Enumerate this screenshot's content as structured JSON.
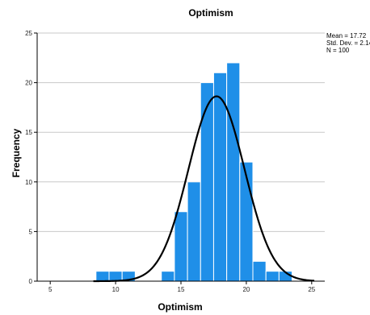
{
  "chart_data": {
    "type": "bar",
    "title": "Optimism",
    "xlabel": "Optimism",
    "ylabel": "Frequency",
    "xlim": [
      4,
      26
    ],
    "ylim": [
      0,
      25
    ],
    "x_ticks": [
      5,
      10,
      15,
      20,
      25
    ],
    "y_ticks": [
      0,
      5,
      10,
      15,
      20,
      25
    ],
    "grid": true,
    "bin_width": 1,
    "bins": [
      {
        "start": 8.5,
        "end": 9.5,
        "count": 1
      },
      {
        "start": 9.5,
        "end": 10.5,
        "count": 1
      },
      {
        "start": 10.5,
        "end": 11.5,
        "count": 1
      },
      {
        "start": 13.5,
        "end": 14.5,
        "count": 1
      },
      {
        "start": 14.5,
        "end": 15.5,
        "count": 7
      },
      {
        "start": 15.5,
        "end": 16.5,
        "count": 10
      },
      {
        "start": 16.5,
        "end": 17.5,
        "count": 20
      },
      {
        "start": 17.5,
        "end": 18.5,
        "count": 21
      },
      {
        "start": 18.5,
        "end": 19.5,
        "count": 22
      },
      {
        "start": 19.5,
        "end": 20.5,
        "count": 12
      },
      {
        "start": 20.5,
        "end": 21.5,
        "count": 2
      },
      {
        "start": 21.5,
        "end": 22.5,
        "count": 1
      },
      {
        "start": 22.5,
        "end": 23.5,
        "count": 1
      }
    ],
    "normal_curve": {
      "mean": 17.72,
      "sd": 2.142,
      "n": 100
    },
    "stats_text": [
      "Mean = 17.72",
      "Std. Dev. = 2.142",
      "N = 100"
    ],
    "bar_color": "#1f8fe8",
    "bar_edge_color": "#ffffff",
    "curve_color": "#000000",
    "grid_color": "#c8c8c8"
  }
}
